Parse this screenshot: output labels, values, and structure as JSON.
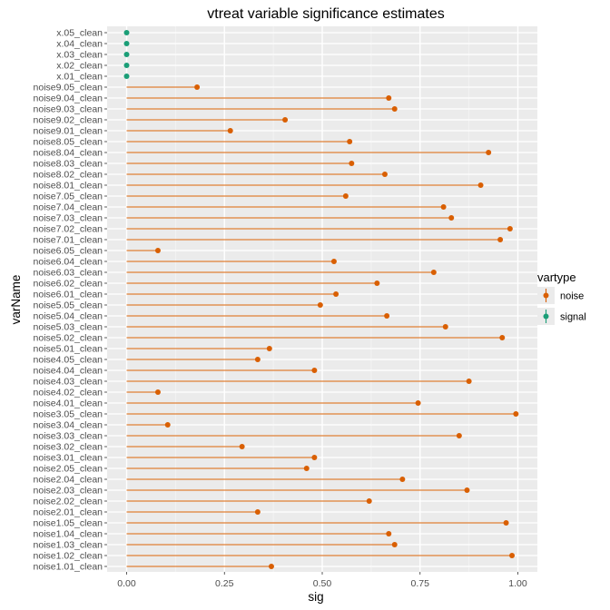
{
  "chart_data": {
    "type": "lollipop",
    "title": "vtreat variable significance estimates",
    "xlabel": "sig",
    "ylabel": "varName",
    "xlim": [
      0,
      1
    ],
    "xticks": [
      0,
      0.25,
      0.5,
      0.75,
      1
    ],
    "xtick_labels": [
      "0.00",
      "0.25",
      "0.50",
      "0.75",
      "1.00"
    ],
    "grid": true,
    "legend": {
      "title": "vartype",
      "placement": "right",
      "entries": [
        {
          "label": "noise",
          "color": "#d95f02"
        },
        {
          "label": "signal",
          "color": "#1b9e77"
        }
      ]
    },
    "points": [
      {
        "name": "x.05_clean",
        "sig": 0.0,
        "vartype": "signal"
      },
      {
        "name": "x.04_clean",
        "sig": 0.0,
        "vartype": "signal"
      },
      {
        "name": "x.03_clean",
        "sig": 0.0,
        "vartype": "signal"
      },
      {
        "name": "x.02_clean",
        "sig": 0.0,
        "vartype": "signal"
      },
      {
        "name": "x.01_clean",
        "sig": 0.0,
        "vartype": "signal"
      },
      {
        "name": "noise9.05_clean",
        "sig": 0.18,
        "vartype": "noise"
      },
      {
        "name": "noise9.04_clean",
        "sig": 0.67,
        "vartype": "noise"
      },
      {
        "name": "noise9.03_clean",
        "sig": 0.685,
        "vartype": "noise"
      },
      {
        "name": "noise9.02_clean",
        "sig": 0.405,
        "vartype": "noise"
      },
      {
        "name": "noise9.01_clean",
        "sig": 0.265,
        "vartype": "noise"
      },
      {
        "name": "noise8.05_clean",
        "sig": 0.57,
        "vartype": "noise"
      },
      {
        "name": "noise8.04_clean",
        "sig": 0.925,
        "vartype": "noise"
      },
      {
        "name": "noise8.03_clean",
        "sig": 0.575,
        "vartype": "noise"
      },
      {
        "name": "noise8.02_clean",
        "sig": 0.66,
        "vartype": "noise"
      },
      {
        "name": "noise8.01_clean",
        "sig": 0.905,
        "vartype": "noise"
      },
      {
        "name": "noise7.05_clean",
        "sig": 0.56,
        "vartype": "noise"
      },
      {
        "name": "noise7.04_clean",
        "sig": 0.81,
        "vartype": "noise"
      },
      {
        "name": "noise7.03_clean",
        "sig": 0.83,
        "vartype": "noise"
      },
      {
        "name": "noise7.02_clean",
        "sig": 0.98,
        "vartype": "noise"
      },
      {
        "name": "noise7.01_clean",
        "sig": 0.955,
        "vartype": "noise"
      },
      {
        "name": "noise6.05_clean",
        "sig": 0.08,
        "vartype": "noise"
      },
      {
        "name": "noise6.04_clean",
        "sig": 0.53,
        "vartype": "noise"
      },
      {
        "name": "noise6.03_clean",
        "sig": 0.785,
        "vartype": "noise"
      },
      {
        "name": "noise6.02_clean",
        "sig": 0.64,
        "vartype": "noise"
      },
      {
        "name": "noise6.01_clean",
        "sig": 0.535,
        "vartype": "noise"
      },
      {
        "name": "noise5.05_clean",
        "sig": 0.495,
        "vartype": "noise"
      },
      {
        "name": "noise5.04_clean",
        "sig": 0.665,
        "vartype": "noise"
      },
      {
        "name": "noise5.03_clean",
        "sig": 0.815,
        "vartype": "noise"
      },
      {
        "name": "noise5.02_clean",
        "sig": 0.96,
        "vartype": "noise"
      },
      {
        "name": "noise5.01_clean",
        "sig": 0.365,
        "vartype": "noise"
      },
      {
        "name": "noise4.05_clean",
        "sig": 0.335,
        "vartype": "noise"
      },
      {
        "name": "noise4.04_clean",
        "sig": 0.48,
        "vartype": "noise"
      },
      {
        "name": "noise4.03_clean",
        "sig": 0.875,
        "vartype": "noise"
      },
      {
        "name": "noise4.02_clean",
        "sig": 0.08,
        "vartype": "noise"
      },
      {
        "name": "noise4.01_clean",
        "sig": 0.745,
        "vartype": "noise"
      },
      {
        "name": "noise3.05_clean",
        "sig": 0.995,
        "vartype": "noise"
      },
      {
        "name": "noise3.04_clean",
        "sig": 0.105,
        "vartype": "noise"
      },
      {
        "name": "noise3.03_clean",
        "sig": 0.85,
        "vartype": "noise"
      },
      {
        "name": "noise3.02_clean",
        "sig": 0.295,
        "vartype": "noise"
      },
      {
        "name": "noise3.01_clean",
        "sig": 0.48,
        "vartype": "noise"
      },
      {
        "name": "noise2.05_clean",
        "sig": 0.46,
        "vartype": "noise"
      },
      {
        "name": "noise2.04_clean",
        "sig": 0.705,
        "vartype": "noise"
      },
      {
        "name": "noise2.03_clean",
        "sig": 0.87,
        "vartype": "noise"
      },
      {
        "name": "noise2.02_clean",
        "sig": 0.62,
        "vartype": "noise"
      },
      {
        "name": "noise2.01_clean",
        "sig": 0.335,
        "vartype": "noise"
      },
      {
        "name": "noise1.05_clean",
        "sig": 0.97,
        "vartype": "noise"
      },
      {
        "name": "noise1.04_clean",
        "sig": 0.67,
        "vartype": "noise"
      },
      {
        "name": "noise1.03_clean",
        "sig": 0.685,
        "vartype": "noise"
      },
      {
        "name": "noise1.02_clean",
        "sig": 0.985,
        "vartype": "noise"
      },
      {
        "name": "noise1.01_clean",
        "sig": 0.37,
        "vartype": "noise"
      }
    ]
  }
}
